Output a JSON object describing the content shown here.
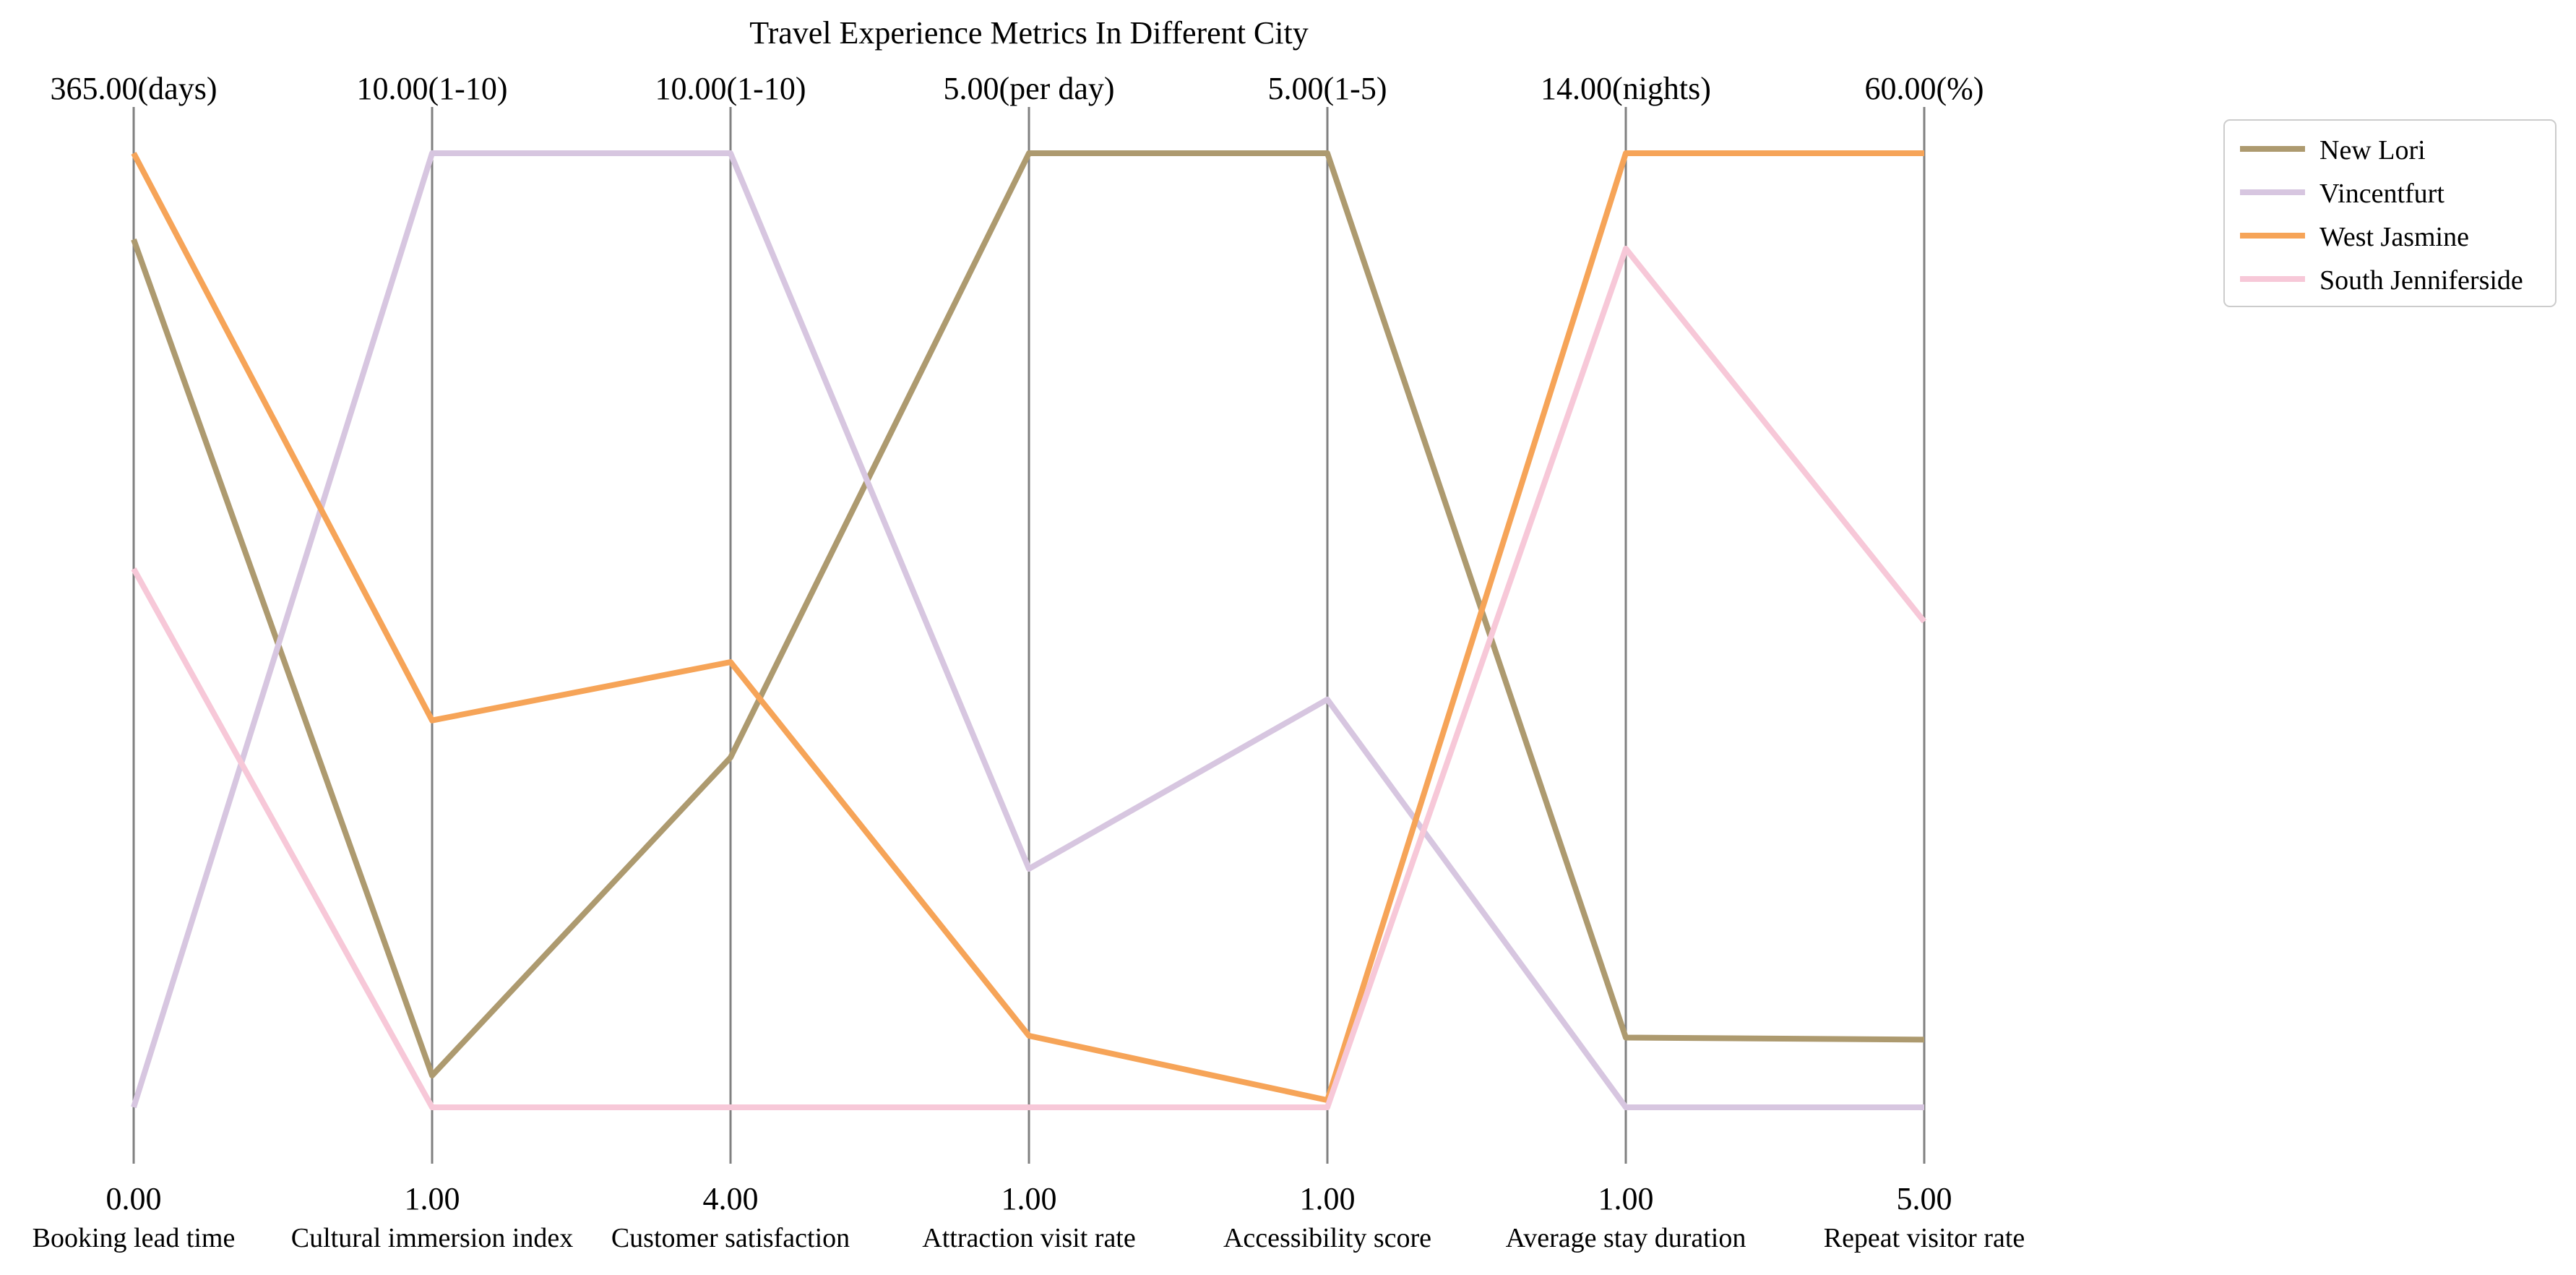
{
  "chart_data": {
    "type": "parallel_coordinates",
    "title": "Travel Experience Metrics In Different City",
    "axes": [
      {
        "name": "Booking lead time",
        "min": 0,
        "max": 365,
        "min_label": "0.00",
        "max_label": "365.00(days)"
      },
      {
        "name": "Cultural immersion index",
        "min": 1,
        "max": 10,
        "min_label": "1.00",
        "max_label": "10.00(1-10)"
      },
      {
        "name": "Customer satisfaction",
        "min": 4,
        "max": 10,
        "min_label": "4.00",
        "max_label": "10.00(1-10)"
      },
      {
        "name": "Attraction visit rate",
        "min": 1,
        "max": 5,
        "min_label": "1.00",
        "max_label": "5.00(per day)"
      },
      {
        "name": "Accessibility score",
        "min": 1,
        "max": 5,
        "min_label": "1.00",
        "max_label": "5.00(1-5)"
      },
      {
        "name": "Average stay duration",
        "min": 1,
        "max": 14,
        "min_label": "1.00",
        "max_label": "14.00(nights)"
      },
      {
        "name": "Repeat visitor rate",
        "min": 5,
        "max": 60,
        "min_label": "5.00",
        "max_label": "60.00(%)"
      }
    ],
    "series": [
      {
        "name": "New Lori",
        "color": "#ad9a6f",
        "values": [
          332,
          1.3,
          6.2,
          5.0,
          5.0,
          1.95,
          8.9
        ]
      },
      {
        "name": "Vincentfurt",
        "color": "#d7c6e0",
        "values": [
          0,
          10.0,
          10.0,
          2.0,
          2.71,
          1.0,
          5.0
        ]
      },
      {
        "name": "West Jasmine",
        "color": "#f6a458",
        "values": [
          365,
          4.65,
          6.8,
          1.3,
          1.03,
          14.0,
          60.0
        ]
      },
      {
        "name": "South Jenniferside",
        "color": "#f7c8d8",
        "values": [
          206,
          1.0,
          4.0,
          1.0,
          1.0,
          12.7,
          33.0
        ]
      }
    ],
    "legend_position": "upper-right-outside"
  }
}
